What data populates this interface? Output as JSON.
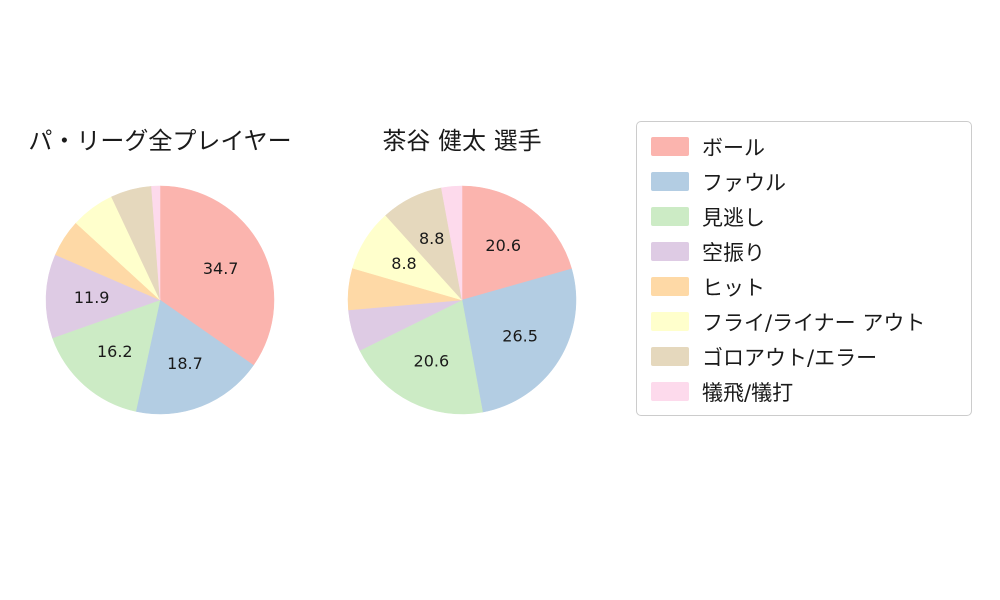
{
  "chart_data": [
    {
      "type": "pie",
      "title": "パ・リーグ全プレイヤー",
      "legend_position": "right",
      "start_angle_deg": 0,
      "direction": "clockwise",
      "slices": [
        {
          "name": "ボール",
          "value": 34.7,
          "label": "34.7",
          "color": "#fbb4ae"
        },
        {
          "name": "ファウル",
          "value": 18.7,
          "label": "18.7",
          "color": "#b3cde3"
        },
        {
          "name": "見逃し",
          "value": 16.2,
          "label": "16.2",
          "color": "#ccebc5"
        },
        {
          "name": "空振り",
          "value": 11.9,
          "label": "11.9",
          "color": "#decbe4"
        },
        {
          "name": "ヒット",
          "value": 5.3,
          "label": "",
          "color": "#fed9a6"
        },
        {
          "name": "フライ/ライナー アウト",
          "value": 6.2,
          "label": "",
          "color": "#ffffcc"
        },
        {
          "name": "ゴロアウト/エラー",
          "value": 5.8,
          "label": "",
          "color": "#e5d8bd"
        },
        {
          "name": "犠飛/犠打",
          "value": 1.2,
          "label": "",
          "color": "#fddaec"
        }
      ]
    },
    {
      "type": "pie",
      "title": "茶谷 健太 選手",
      "legend_position": "right",
      "start_angle_deg": 0,
      "direction": "clockwise",
      "slices": [
        {
          "name": "ボール",
          "value": 20.6,
          "label": "20.6",
          "color": "#fbb4ae"
        },
        {
          "name": "ファウル",
          "value": 26.5,
          "label": "26.5",
          "color": "#b3cde3"
        },
        {
          "name": "見逃し",
          "value": 20.6,
          "label": "20.6",
          "color": "#ccebc5"
        },
        {
          "name": "空振り",
          "value": 5.9,
          "label": "",
          "color": "#decbe4"
        },
        {
          "name": "ヒット",
          "value": 5.9,
          "label": "",
          "color": "#fed9a6"
        },
        {
          "name": "フライ/ライナー アウト",
          "value": 8.8,
          "label": "8.8",
          "color": "#ffffcc"
        },
        {
          "name": "ゴロアウト/エラー",
          "value": 8.8,
          "label": "8.8",
          "color": "#e5d8bd"
        },
        {
          "name": "犠飛/犠打",
          "value": 2.9,
          "label": "",
          "color": "#fddaec"
        }
      ]
    }
  ],
  "legend": {
    "items": [
      {
        "label": "ボール",
        "color": "#fbb4ae"
      },
      {
        "label": "ファウル",
        "color": "#b3cde3"
      },
      {
        "label": "見逃し",
        "color": "#ccebc5"
      },
      {
        "label": "空振り",
        "color": "#decbe4"
      },
      {
        "label": "ヒット",
        "color": "#fed9a6"
      },
      {
        "label": "フライ/ライナー アウト",
        "color": "#ffffcc"
      },
      {
        "label": "ゴロアウト/エラー",
        "color": "#e5d8bd"
      },
      {
        "label": "犠飛/犠打",
        "color": "#fddaec"
      }
    ]
  }
}
